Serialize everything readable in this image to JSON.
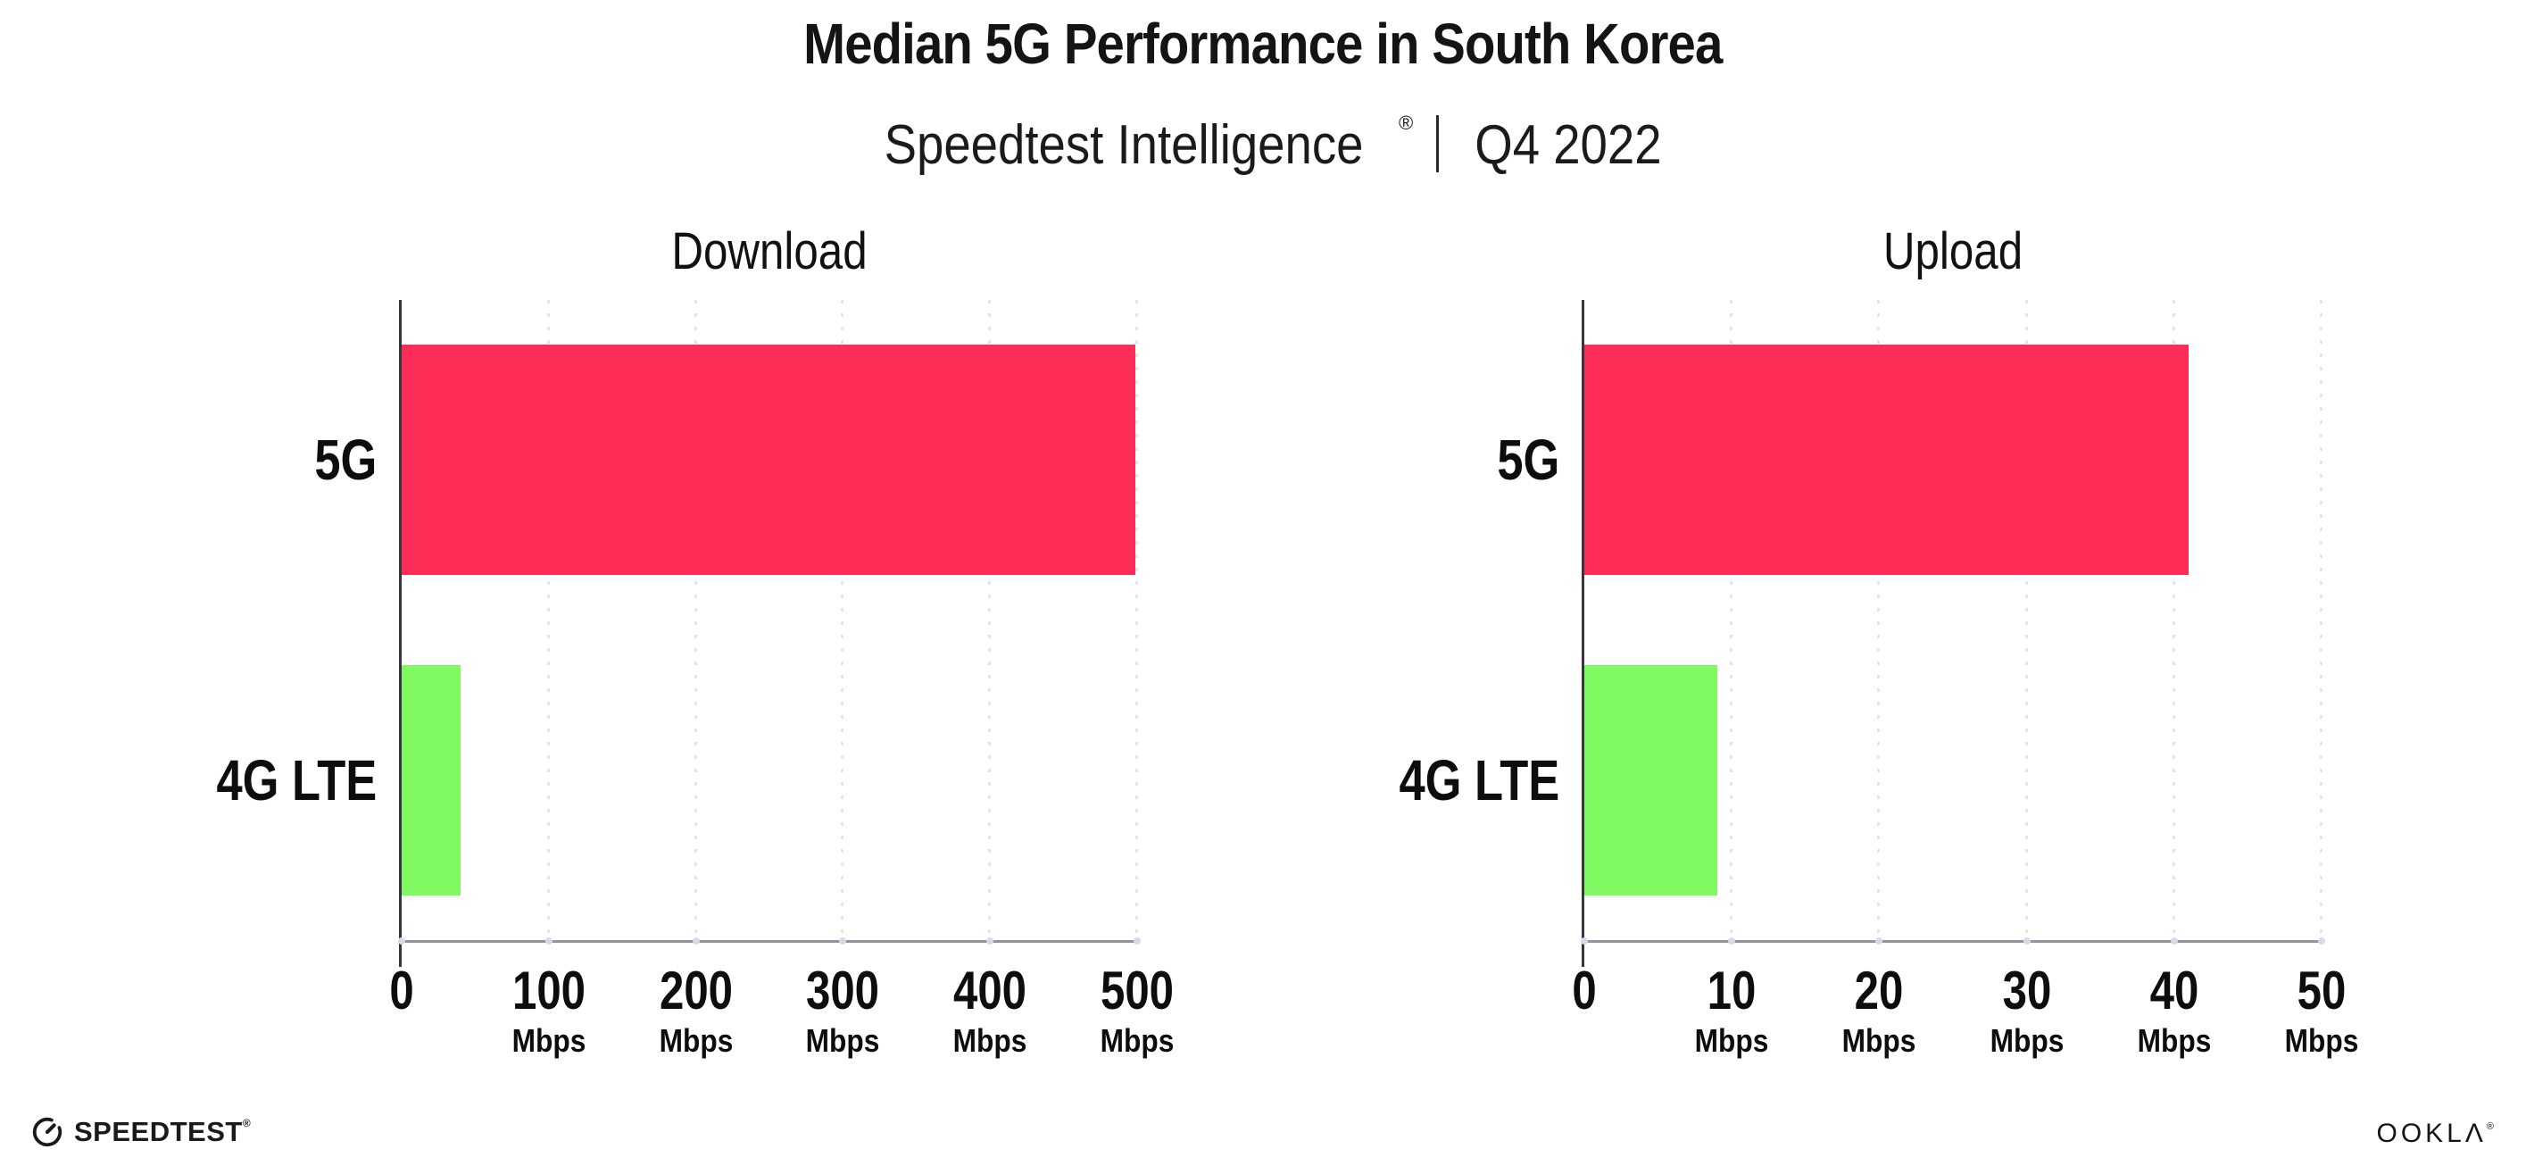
{
  "header": {
    "title": "Median 5G Performance in South Korea",
    "subtitle_brand": "Speedtest Intelligence",
    "subtitle_reg": "®",
    "subtitle_period": "Q4 2022"
  },
  "charts": [
    {
      "title": "Download",
      "ticks": [
        {
          "value": "0",
          "unit": ""
        },
        {
          "value": "100",
          "unit": "Mbps"
        },
        {
          "value": "200",
          "unit": "Mbps"
        },
        {
          "value": "300",
          "unit": "Mbps"
        },
        {
          "value": "400",
          "unit": "Mbps"
        },
        {
          "value": "500",
          "unit": "Mbps"
        }
      ],
      "bars": [
        {
          "label": "5G"
        },
        {
          "label": "4G LTE"
        }
      ]
    },
    {
      "title": "Upload",
      "ticks": [
        {
          "value": "0",
          "unit": ""
        },
        {
          "value": "10",
          "unit": "Mbps"
        },
        {
          "value": "20",
          "unit": "Mbps"
        },
        {
          "value": "30",
          "unit": "Mbps"
        },
        {
          "value": "40",
          "unit": "Mbps"
        },
        {
          "value": "50",
          "unit": "Mbps"
        }
      ],
      "bars": [
        {
          "label": "5G"
        },
        {
          "label": "4G LTE"
        }
      ]
    }
  ],
  "footer": {
    "speedtest_text": "SPEEDTEST",
    "speedtest_reg": "®",
    "ookla_text": "OOKLΛ",
    "ookla_reg": "®"
  },
  "colors": {
    "bar_5g": "#FD2D58",
    "bar_4g": "#7FFA60",
    "gridline": "#E4E5F0",
    "axis_y": "#35353B",
    "axis_x": "#8F949D"
  },
  "chart_data": [
    {
      "type": "bar",
      "orientation": "horizontal",
      "title": "Download",
      "categories": [
        "5G",
        "4G LTE"
      ],
      "values": [
        499,
        40
      ],
      "unit": "Mbps",
      "xlim": [
        0,
        500
      ],
      "xticks": [
        0,
        100,
        200,
        300,
        400,
        500
      ],
      "bar_colors": [
        "#FD2D58",
        "#7FFA60"
      ],
      "grid": "vertical dotted at each tick",
      "legend": "none"
    },
    {
      "type": "bar",
      "orientation": "horizontal",
      "title": "Upload",
      "categories": [
        "5G",
        "4G LTE"
      ],
      "values": [
        41,
        9
      ],
      "unit": "Mbps",
      "xlim": [
        0,
        50
      ],
      "xticks": [
        0,
        10,
        20,
        30,
        40,
        50
      ],
      "bar_colors": [
        "#FD2D58",
        "#7FFA60"
      ],
      "grid": "vertical dotted at each tick",
      "legend": "none"
    }
  ]
}
